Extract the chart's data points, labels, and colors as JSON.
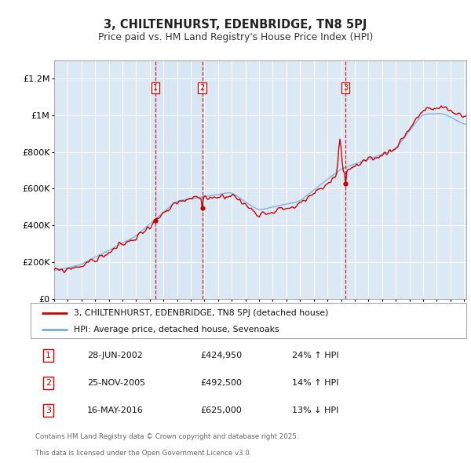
{
  "title": "3, CHILTENHURST, EDENBRIDGE, TN8 5PJ",
  "subtitle": "Price paid vs. HM Land Registry's House Price Index (HPI)",
  "background_color": "#ffffff",
  "plot_bg_color": "#dce9f5",
  "sale_points": [
    {
      "num": 1,
      "date": "28-JUN-2002",
      "price": 424950,
      "hpi_rel": "24% ↑ HPI"
    },
    {
      "num": 2,
      "date": "25-NOV-2005",
      "price": 492500,
      "hpi_rel": "14% ↑ HPI"
    },
    {
      "num": 3,
      "date": "16-MAY-2016",
      "price": 625000,
      "hpi_rel": "13% ↓ HPI"
    }
  ],
  "legend_property": "3, CHILTENHURST, EDENBRIDGE, TN8 5PJ (detached house)",
  "legend_hpi": "HPI: Average price, detached house, Sevenoaks",
  "footer": "Contains HM Land Registry data © Crown copyright and database right 2025.\nThis data is licensed under the Open Government Licence v3.0.",
  "property_color": "#cc0000",
  "hpi_color": "#7aadd4",
  "ylim_max": 1300000,
  "yticks": [
    0,
    200000,
    400000,
    600000,
    800000,
    1000000,
    1200000
  ],
  "ytick_labels": [
    "£0",
    "£200K",
    "£400K",
    "£600K",
    "£800K",
    "£1M",
    "£1.2M"
  ]
}
